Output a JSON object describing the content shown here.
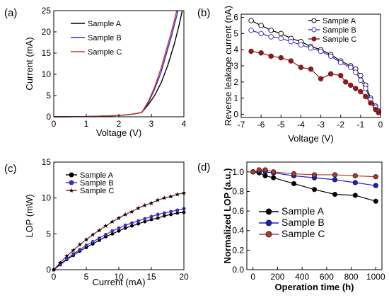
{
  "chart_data": [
    {
      "panel": "(a)",
      "type": "line",
      "xlabel": "Voltage (V)",
      "ylabel": "Current (mA)",
      "xlim": [
        0,
        4
      ],
      "ylim": [
        0,
        25
      ],
      "xticks": [
        0,
        1,
        2,
        3,
        4
      ],
      "yticks": [
        0,
        5,
        10,
        15,
        20,
        25
      ],
      "legend": "top-left",
      "grid": false,
      "series": [
        {
          "name": "Sample A",
          "color": "#000000",
          "x": [
            0,
            1.0,
            2.0,
            2.4,
            2.7,
            2.9,
            3.1,
            3.3,
            3.5,
            3.7,
            3.85,
            3.95
          ],
          "y": [
            0,
            0.05,
            0.3,
            0.6,
            1.0,
            2.8,
            5.0,
            8.0,
            12.0,
            17.0,
            21.5,
            25.0
          ]
        },
        {
          "name": "Sample B",
          "color": "#3b2fbf",
          "x": [
            0,
            1.0,
            2.0,
            2.4,
            2.7,
            2.9,
            3.1,
            3.3,
            3.45,
            3.6,
            3.72,
            3.82
          ],
          "y": [
            0,
            0.05,
            0.3,
            0.6,
            1.0,
            3.2,
            6.5,
            10.5,
            14.5,
            18.5,
            22.0,
            25.0
          ]
        },
        {
          "name": "Sample C",
          "color": "#c0392b",
          "x": [
            0,
            1.0,
            2.0,
            2.4,
            2.7,
            2.9,
            3.1,
            3.3,
            3.45,
            3.6,
            3.7,
            3.78
          ],
          "y": [
            0,
            0.05,
            0.3,
            0.6,
            1.0,
            3.5,
            7.0,
            11.5,
            15.5,
            19.5,
            22.5,
            25.0
          ]
        }
      ]
    },
    {
      "panel": "(b)",
      "type": "line",
      "xlabel": "Voltage (V)",
      "ylabel": "Reverse leakage current (nA)",
      "xlim": [
        -7,
        0
      ],
      "ylim": [
        -0.2,
        6.2
      ],
      "xticks": [
        -7,
        -6,
        -5,
        -4,
        -3,
        -2,
        -1,
        0
      ],
      "yticks": [
        0,
        1,
        2,
        3,
        4,
        5,
        6
      ],
      "legend": "top-right",
      "grid": false,
      "series": [
        {
          "name": "Sample A",
          "color": "#000000",
          "marker": "open-circle",
          "x": [
            -6.5,
            -6,
            -5.5,
            -5,
            -4.5,
            -4,
            -3.5,
            -3,
            -2.5,
            -2,
            -1.5,
            -1.25,
            -1,
            -0.75,
            -0.5,
            -0.25,
            -0.1
          ],
          "y": [
            5.8,
            5.5,
            5.2,
            5.0,
            4.7,
            4.5,
            4.2,
            4.0,
            3.7,
            3.3,
            3.0,
            2.8,
            2.4,
            1.8,
            1.0,
            0.5,
            0.2
          ]
        },
        {
          "name": "Sample B",
          "color": "#3b2fbf",
          "marker": "open-circle",
          "x": [
            -6.5,
            -6,
            -5.5,
            -5,
            -4.5,
            -4,
            -3.5,
            -3,
            -2.5,
            -2,
            -1.5,
            -1.25,
            -1,
            -0.75,
            -0.5,
            -0.25,
            -0.1
          ],
          "y": [
            5.2,
            5.0,
            4.8,
            4.7,
            4.5,
            4.3,
            4.1,
            3.9,
            3.6,
            3.2,
            2.9,
            2.6,
            2.1,
            1.6,
            0.9,
            0.4,
            0.15
          ]
        },
        {
          "name": "Sample C",
          "color": "#8b1a1a",
          "marker": "filled-circle",
          "x": [
            -6.5,
            -6,
            -5.5,
            -5,
            -4.5,
            -4,
            -3.5,
            -3,
            -2.5,
            -2,
            -1.75,
            -1.5,
            -1.25,
            -1,
            -0.75,
            -0.5,
            -0.25,
            -0.1
          ],
          "y": [
            3.9,
            3.8,
            3.6,
            3.5,
            3.3,
            2.9,
            2.8,
            2.2,
            2.5,
            2.4,
            2.0,
            1.8,
            1.6,
            1.4,
            1.1,
            0.7,
            0.3,
            0.1
          ]
        }
      ]
    },
    {
      "panel": "(c)",
      "type": "line",
      "xlabel": "Current (mA)",
      "ylabel": "LOP (mW)",
      "xlim": [
        0,
        20
      ],
      "ylim": [
        0,
        15
      ],
      "xticks": [
        0,
        5,
        10,
        15,
        20
      ],
      "yticks": [
        0,
        5,
        10,
        15
      ],
      "legend": "top-left",
      "grid": false,
      "series": [
        {
          "name": "Sample A",
          "color": "#000000",
          "marker": "filled-circle",
          "x": [
            0,
            1,
            2,
            3,
            4,
            5,
            6,
            7,
            8,
            9,
            10,
            11,
            12,
            13,
            14,
            15,
            16,
            17,
            18,
            19,
            20
          ],
          "y": [
            0,
            0.7,
            1.4,
            2.0,
            2.6,
            3.1,
            3.6,
            4.1,
            4.6,
            5.0,
            5.4,
            5.8,
            6.1,
            6.4,
            6.7,
            7.0,
            7.2,
            7.5,
            7.7,
            7.9,
            8.0
          ]
        },
        {
          "name": "Sample B",
          "color": "#3b2fbf",
          "marker": "filled-circle",
          "x": [
            0,
            1,
            2,
            3,
            4,
            5,
            6,
            7,
            8,
            9,
            10,
            11,
            12,
            13,
            14,
            15,
            16,
            17,
            18,
            19,
            20
          ],
          "y": [
            0,
            0.8,
            1.5,
            2.2,
            2.8,
            3.4,
            3.9,
            4.4,
            4.9,
            5.4,
            5.8,
            6.2,
            6.5,
            6.8,
            7.1,
            7.4,
            7.7,
            7.9,
            8.1,
            8.3,
            8.5
          ]
        },
        {
          "name": "Sample C",
          "color": "#8b1a1a",
          "marker": "star",
          "x": [
            0,
            1,
            2,
            3,
            4,
            5,
            6,
            7,
            8,
            9,
            10,
            11,
            12,
            13,
            14,
            15,
            16,
            17,
            18,
            19,
            20
          ],
          "y": [
            0,
            1.0,
            1.9,
            2.7,
            3.5,
            4.2,
            4.9,
            5.5,
            6.1,
            6.7,
            7.2,
            7.7,
            8.1,
            8.6,
            9.0,
            9.3,
            9.7,
            10.0,
            10.2,
            10.5,
            10.7
          ]
        }
      ]
    },
    {
      "panel": "(d)",
      "type": "line",
      "xlabel": "Operation time (h)",
      "ylabel": "Normalized LOP (a.u.)",
      "xlim": [
        -50,
        1050
      ],
      "ylim": [
        0.0,
        1.1
      ],
      "xticks": [
        0,
        200,
        400,
        600,
        800,
        1000
      ],
      "yticks": [
        0.0,
        0.2,
        0.4,
        0.6,
        0.8,
        1.0
      ],
      "legend": "bottom-left",
      "grid": false,
      "series": [
        {
          "name": "Sample A",
          "color": "#000000",
          "marker": "filled-circle",
          "x": [
            0,
            50,
            100,
            167,
            333,
            500,
            667,
            833,
            1000
          ],
          "y": [
            1.0,
            0.99,
            0.96,
            0.94,
            0.88,
            0.82,
            0.77,
            0.76,
            0.7
          ]
        },
        {
          "name": "Sample B",
          "color": "#1a1ad9",
          "marker": "filled-circle",
          "x": [
            0,
            50,
            100,
            167,
            333,
            500,
            667,
            833,
            1000
          ],
          "y": [
            1.0,
            1.01,
            1.0,
            0.99,
            0.96,
            0.94,
            0.92,
            0.89,
            0.86
          ]
        },
        {
          "name": "Sample C",
          "color": "#b03a2e",
          "marker": "filled-circle",
          "x": [
            0,
            50,
            100,
            167,
            333,
            500,
            667,
            833,
            1000
          ],
          "y": [
            1.0,
            1.02,
            1.02,
            1.0,
            0.98,
            0.97,
            0.97,
            0.96,
            0.95
          ]
        }
      ]
    }
  ]
}
